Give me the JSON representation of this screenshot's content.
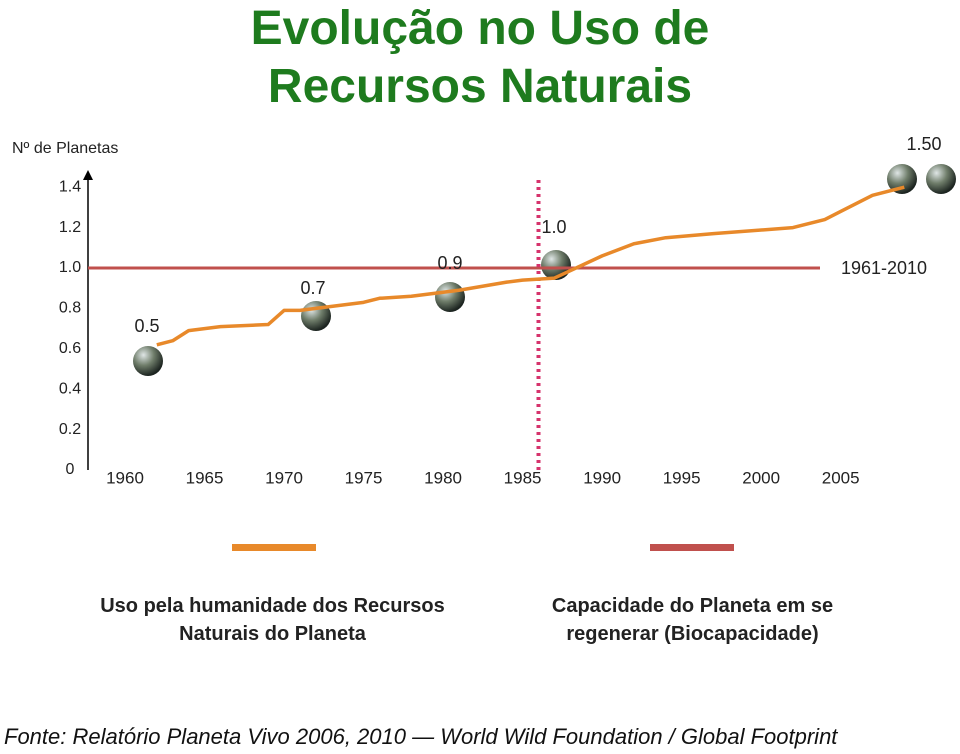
{
  "chart_data": {
    "type": "line",
    "title": "Evolução no Uso de Recursos Naturais",
    "y_label": "Nº de Planetas",
    "x": [
      1962,
      1963,
      1964,
      1966,
      1969,
      1970,
      1971,
      1973,
      1975,
      1976,
      1978,
      1981,
      1984,
      1985,
      1987,
      1990,
      1992,
      1994,
      1997,
      2002,
      2004,
      2005,
      2007,
      2009
    ],
    "series": [
      {
        "name": "Uso pela humanidade dos Recursos Naturais do Planeta",
        "color": "#e8892a",
        "values": [
          0.62,
          0.64,
          0.69,
          0.71,
          0.72,
          0.79,
          0.79,
          0.81,
          0.83,
          0.85,
          0.86,
          0.89,
          0.93,
          0.94,
          0.95,
          1.06,
          1.12,
          1.15,
          1.17,
          1.2,
          1.24,
          1.28,
          1.36,
          1.4
        ]
      }
    ],
    "reference_line": {
      "name": "Capacidade do Planeta em se regenerar (Biocapacidade)",
      "color": "#c0504d",
      "value": 1
    },
    "marker_line": {
      "color": "#d6336c",
      "value": 1986
    },
    "annotations": [
      "0.5",
      "0.7",
      "0.9",
      "1.0",
      "1.50",
      "1961-2010"
    ],
    "xlim": [
      1958,
      2012
    ],
    "xticks": [
      1960,
      1965,
      1970,
      1975,
      1980,
      1985,
      1990,
      1995,
      2000,
      2005
    ],
    "ylim": [
      0,
      1.5
    ],
    "yticks": [
      0,
      0.2,
      0.4,
      0.6,
      0.8,
      {
        "value": 1,
        "label": "1.0"
      },
      1.2,
      1.4
    ],
    "source": "Fonte:  Relatório Planeta Vivo 2006, 2010 — World Wild Foundation / Global Footprint"
  }
}
